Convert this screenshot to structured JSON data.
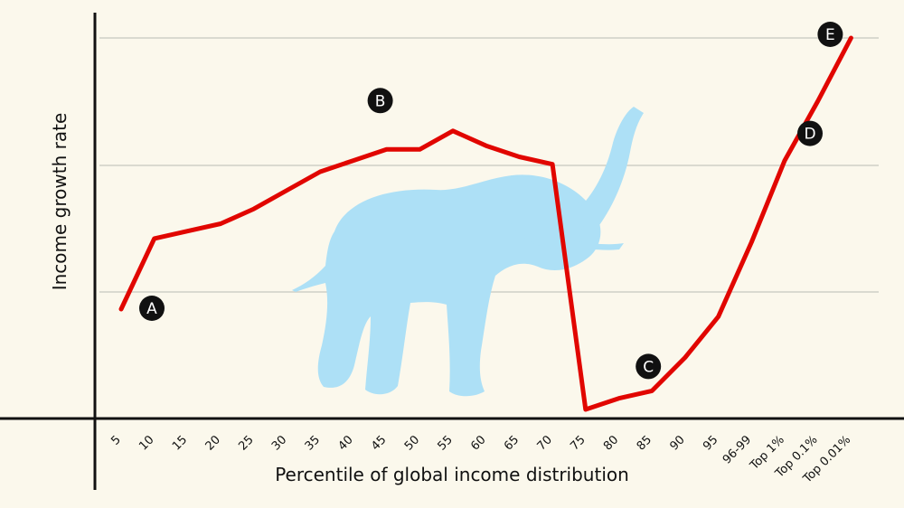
{
  "chart_data": {
    "type": "line",
    "title": "",
    "xlabel": "Percentile of global income distribution",
    "ylabel": "Income growth rate",
    "categories": [
      "5",
      "10",
      "15",
      "20",
      "25",
      "30",
      "35",
      "40",
      "45",
      "50",
      "55",
      "60",
      "65",
      "70",
      "75",
      "80",
      "85",
      "90",
      "95",
      "96-99",
      "Top 1%",
      "Top 0.1%",
      "Top 0.01%"
    ],
    "series": [
      {
        "name": "Income growth",
        "color": "#e10600",
        "values": [
          27,
          46,
          48,
          50,
          54,
          59,
          64,
          67,
          70,
          70,
          75,
          71,
          68,
          66,
          0,
          3,
          5,
          14,
          25,
          45,
          67,
          83,
          100
        ]
      }
    ],
    "ylim": [
      0,
      100
    ],
    "grid": true,
    "background_silhouette": "elephant",
    "annotations": [
      {
        "label": "A",
        "category": "5"
      },
      {
        "label": "B",
        "category": "45"
      },
      {
        "label": "C",
        "category": "85"
      },
      {
        "label": "D",
        "category": "Top 1%"
      },
      {
        "label": "E",
        "category": "Top 0.01%"
      }
    ],
    "colors": {
      "background": "#fbf8ec",
      "line": "#e10600",
      "silhouette": "#ade0f6",
      "grid": "#cfcfc6",
      "axis": "#111111",
      "marker": "#111111",
      "marker_text": "#ffffff"
    }
  }
}
